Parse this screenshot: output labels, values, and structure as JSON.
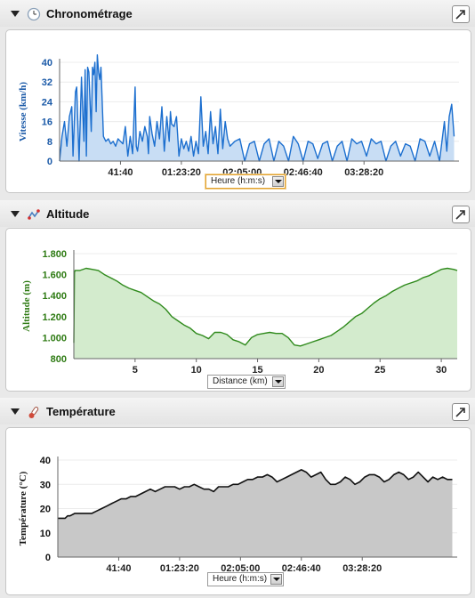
{
  "panels": [
    {
      "id": "chrono",
      "title": "Chronométrage",
      "icon": "clock-icon",
      "select_label": "Heure (h:m:s)",
      "select_active": true
    },
    {
      "id": "alti",
      "title": "Altitude",
      "icon": "route-icon",
      "select_label": "Distance (km)",
      "select_active": false
    },
    {
      "id": "temp",
      "title": "Température",
      "icon": "thermometer-icon",
      "select_label": "Heure (h:m:s)",
      "select_active": false
    }
  ],
  "colors": {
    "speed_line": "#1c6fcf",
    "speed_fill": "#c8ddf4",
    "speed_axis": "#1b5aa8",
    "alt_line": "#2f8a1c",
    "alt_fill": "#d3ebcd",
    "alt_axis": "#2d7a12",
    "temp_line": "#111111",
    "temp_fill": "#c8c8c8",
    "temp_axis": "#111111"
  },
  "chart_data": [
    {
      "type": "area",
      "ylabel": "Vitesse (km/h)",
      "xlabel": "Heure (h:m:s)",
      "xlim": [
        0,
        16400
      ],
      "ylim": [
        0,
        40
      ],
      "xticks": [
        2500,
        5000,
        7500,
        10000,
        12500
      ],
      "xtick_labels": [
        "41:40",
        "01:23:20",
        "02:05:00",
        "02:46:40",
        "03:28:20"
      ],
      "yticks": [
        0,
        8,
        16,
        24,
        32,
        40
      ],
      "ytick_labels": [
        "0",
        "8",
        "16",
        "24",
        "32",
        "40"
      ],
      "grid": true,
      "x": [
        0,
        100,
        200,
        300,
        400,
        500,
        550,
        650,
        700,
        800,
        900,
        1000,
        1050,
        1100,
        1150,
        1200,
        1300,
        1350,
        1400,
        1450,
        1500,
        1550,
        1600,
        1650,
        1700,
        1800,
        1900,
        2000,
        2100,
        2200,
        2300,
        2400,
        2500,
        2600,
        2700,
        2800,
        2900,
        3000,
        3100,
        3150,
        3200,
        3300,
        3400,
        3500,
        3600,
        3650,
        3700,
        3800,
        3900,
        4000,
        4100,
        4200,
        4300,
        4400,
        4500,
        4550,
        4600,
        4700,
        4800,
        4900,
        5000,
        5100,
        5200,
        5300,
        5400,
        5500,
        5600,
        5700,
        5800,
        5900,
        6000,
        6100,
        6200,
        6300,
        6400,
        6500,
        6600,
        6700,
        6800,
        6900,
        7000,
        7200,
        7400,
        7600,
        7800,
        8000,
        8200,
        8400,
        8600,
        8800,
        9000,
        9200,
        9400,
        9600,
        9800,
        10000,
        10200,
        10400,
        10600,
        10800,
        11000,
        11200,
        11400,
        11600,
        11800,
        12000,
        12200,
        12400,
        12600,
        12800,
        13000,
        13200,
        13400,
        13600,
        13800,
        14000,
        14200,
        14400,
        14600,
        14800,
        15000,
        15200,
        15400,
        15600,
        15800,
        15900,
        16000,
        16100,
        16200
      ],
      "y": [
        0,
        10,
        16,
        6,
        18,
        22,
        2,
        28,
        30,
        0,
        34,
        8,
        37,
        2,
        38,
        36,
        12,
        38,
        35,
        40,
        20,
        43,
        36,
        33,
        38,
        10,
        8,
        9,
        7,
        8,
        6,
        9,
        8,
        7,
        14,
        2,
        10,
        3,
        30,
        6,
        4,
        12,
        8,
        14,
        10,
        3,
        18,
        11,
        6,
        16,
        9,
        22,
        4,
        18,
        8,
        20,
        15,
        14,
        18,
        2,
        9,
        5,
        8,
        4,
        10,
        2,
        8,
        3,
        26,
        6,
        12,
        3,
        20,
        7,
        14,
        3,
        21,
        5,
        16,
        9,
        6,
        8,
        9,
        0,
        7,
        8,
        0,
        7,
        9,
        0,
        8,
        6,
        0,
        10,
        7,
        0,
        8,
        7,
        1,
        7,
        8,
        0,
        6,
        8,
        0,
        9,
        7,
        8,
        2,
        9,
        7,
        8,
        0,
        6,
        8,
        2,
        7,
        6,
        0,
        9,
        8,
        2,
        8,
        0,
        16,
        4,
        18,
        23,
        10
      ]
    },
    {
      "type": "area",
      "ylabel": "Altitude (m)",
      "xlabel": "Distance (km)",
      "xlim": [
        0,
        31.3
      ],
      "ylim": [
        800,
        1800
      ],
      "xticks": [
        5,
        10,
        15,
        20,
        25,
        30
      ],
      "xtick_labels": [
        "5",
        "10",
        "15",
        "20",
        "25",
        "30"
      ],
      "yticks": [
        800,
        1000,
        1200,
        1400,
        1600,
        1800
      ],
      "ytick_labels": [
        "800",
        "1.000",
        "1.200",
        "1.400",
        "1.600",
        "1.800"
      ],
      "grid": true,
      "x": [
        0,
        0.05,
        0.1,
        0.5,
        1,
        1.5,
        2,
        2.5,
        3,
        3.5,
        4,
        4.5,
        5,
        5.5,
        6,
        6.5,
        7,
        7.5,
        8,
        8.5,
        9,
        9.5,
        10,
        10.5,
        11,
        11.5,
        12,
        12.5,
        13,
        13.5,
        14,
        14.5,
        15,
        15.5,
        16,
        16.5,
        17,
        17.5,
        18,
        18.5,
        19,
        19.5,
        20,
        20.5,
        21,
        21.5,
        22,
        22.5,
        23,
        23.5,
        24,
        24.5,
        25,
        25.5,
        26,
        26.5,
        27,
        27.5,
        28,
        28.5,
        29,
        29.5,
        30,
        30.5,
        31,
        31.3
      ],
      "y": [
        950,
        1620,
        1640,
        1640,
        1660,
        1650,
        1640,
        1600,
        1570,
        1540,
        1500,
        1470,
        1450,
        1430,
        1390,
        1350,
        1320,
        1270,
        1200,
        1160,
        1120,
        1090,
        1040,
        1020,
        990,
        1050,
        1050,
        1030,
        980,
        960,
        930,
        1000,
        1030,
        1040,
        1050,
        1040,
        1040,
        1000,
        930,
        920,
        940,
        960,
        980,
        1000,
        1020,
        1060,
        1100,
        1150,
        1200,
        1230,
        1280,
        1330,
        1370,
        1400,
        1440,
        1470,
        1500,
        1520,
        1540,
        1570,
        1590,
        1620,
        1650,
        1660,
        1650,
        1640
      ]
    },
    {
      "type": "area",
      "ylabel": "Température (°C)",
      "xlabel": "Heure (h:m:s)",
      "xlim": [
        0,
        16400
      ],
      "ylim": [
        0,
        40
      ],
      "xticks": [
        2500,
        5000,
        7500,
        10000,
        12500
      ],
      "xtick_labels": [
        "41:40",
        "01:23:20",
        "02:05:00",
        "02:46:40",
        "03:28:20"
      ],
      "yticks": [
        0,
        10,
        20,
        30,
        40
      ],
      "ytick_labels": [
        "0",
        "10",
        "20",
        "30",
        "40"
      ],
      "grid": true,
      "x": [
        0,
        300,
        400,
        500,
        700,
        1200,
        1400,
        1600,
        1800,
        2000,
        2200,
        2400,
        2600,
        2800,
        3000,
        3200,
        3400,
        3600,
        3800,
        4000,
        4200,
        4400,
        4600,
        4800,
        5000,
        5200,
        5400,
        5600,
        5800,
        6000,
        6200,
        6400,
        6600,
        6800,
        7000,
        7200,
        7400,
        7600,
        7800,
        8000,
        8200,
        8400,
        8600,
        8800,
        9000,
        9200,
        9400,
        9600,
        9800,
        10000,
        10200,
        10400,
        10600,
        10800,
        11000,
        11200,
        11400,
        11600,
        11800,
        12000,
        12200,
        12400,
        12600,
        12800,
        13000,
        13200,
        13400,
        13600,
        13800,
        14000,
        14200,
        14400,
        14600,
        14800,
        15000,
        15200,
        15400,
        15600,
        15800,
        16000,
        16200
      ],
      "y": [
        16,
        16,
        17,
        17,
        18,
        18,
        18,
        19,
        20,
        21,
        22,
        23,
        24,
        24,
        25,
        25,
        26,
        27,
        28,
        27,
        28,
        29,
        29,
        29,
        28,
        29,
        29,
        30,
        29,
        28,
        28,
        27,
        29,
        29,
        29,
        30,
        30,
        31,
        32,
        32,
        33,
        33,
        34,
        33,
        31,
        32,
        33,
        34,
        35,
        36,
        35,
        33,
        34,
        35,
        32,
        30,
        30,
        31,
        33,
        32,
        30,
        31,
        33,
        34,
        34,
        33,
        31,
        32,
        34,
        35,
        34,
        32,
        33,
        35,
        33,
        31,
        33,
        32,
        33,
        32,
        32
      ]
    }
  ]
}
